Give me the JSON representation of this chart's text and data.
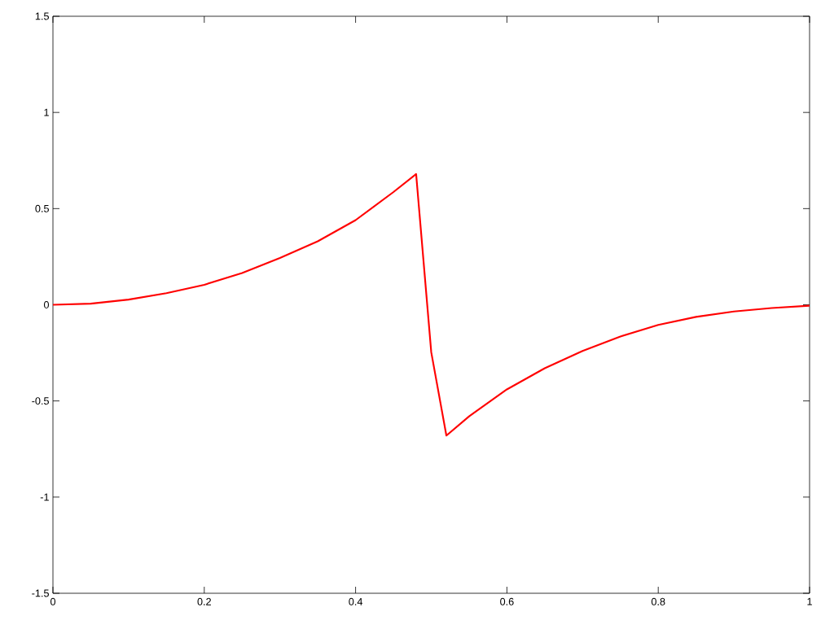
{
  "chart_data": {
    "type": "line",
    "x": [
      0,
      0.05,
      0.1,
      0.15,
      0.2,
      0.25,
      0.3,
      0.35,
      0.4,
      0.45,
      0.48,
      0.5,
      0.52,
      0.55,
      0.6,
      0.65,
      0.7,
      0.75,
      0.8,
      0.85,
      0.9,
      0.95,
      1
    ],
    "series": [
      {
        "color": "#ff0000",
        "values": [
          0,
          0.006,
          0.027,
          0.06,
          0.104,
          0.165,
          0.243,
          0.33,
          0.44,
          0.586,
          0.68,
          -0.247,
          -0.68,
          -0.58,
          -0.44,
          -0.33,
          -0.24,
          -0.165,
          -0.105,
          -0.063,
          -0.035,
          -0.017,
          -0.005
        ]
      }
    ],
    "xlim": [
      0,
      1
    ],
    "ylim": [
      -1.5,
      1.5
    ],
    "xticks": [
      0,
      0.2,
      0.4,
      0.6,
      0.8,
      1
    ],
    "yticks": [
      -1.5,
      -1,
      -0.5,
      0,
      0.5,
      1,
      1.5
    ],
    "grid": false,
    "marker": "none",
    "line_style": "solid"
  }
}
